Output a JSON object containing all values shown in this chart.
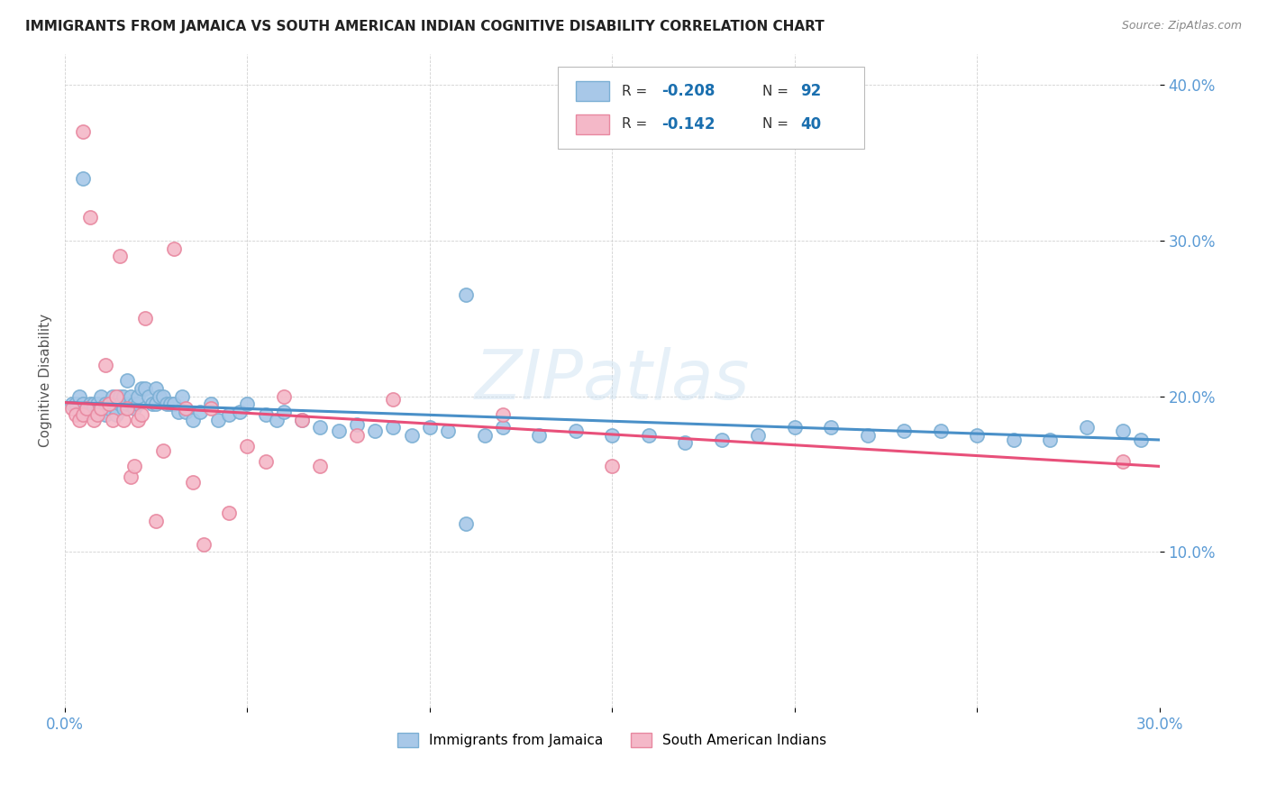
{
  "title": "IMMIGRANTS FROM JAMAICA VS SOUTH AMERICAN INDIAN COGNITIVE DISABILITY CORRELATION CHART",
  "source": "Source: ZipAtlas.com",
  "ylabel": "Cognitive Disability",
  "xlim": [
    0.0,
    0.3
  ],
  "ylim": [
    0.0,
    0.42
  ],
  "yticks": [
    0.1,
    0.2,
    0.3,
    0.4
  ],
  "ytick_labels": [
    "10.0%",
    "20.0%",
    "30.0%",
    "40.0%"
  ],
  "xticks": [
    0.0,
    0.05,
    0.1,
    0.15,
    0.2,
    0.25,
    0.3
  ],
  "color_blue": "#a8c8e8",
  "color_pink": "#f4b8c8",
  "edge_blue": "#7bafd4",
  "edge_pink": "#e888a0",
  "line_blue": "#4a90c8",
  "line_pink": "#e8507a",
  "axis_color": "#5b9bd5",
  "watermark": "ZIPatlas",
  "legend_r1": "-0.208",
  "legend_n1": "92",
  "legend_r2": "-0.142",
  "legend_n2": "40",
  "blue_scatter_x": [
    0.002,
    0.003,
    0.004,
    0.004,
    0.005,
    0.005,
    0.006,
    0.006,
    0.007,
    0.007,
    0.008,
    0.008,
    0.009,
    0.009,
    0.01,
    0.01,
    0.011,
    0.011,
    0.012,
    0.012,
    0.013,
    0.013,
    0.014,
    0.014,
    0.015,
    0.015,
    0.016,
    0.016,
    0.017,
    0.017,
    0.018,
    0.018,
    0.019,
    0.019,
    0.02,
    0.02,
    0.021,
    0.022,
    0.023,
    0.024,
    0.025,
    0.025,
    0.026,
    0.027,
    0.028,
    0.029,
    0.03,
    0.031,
    0.032,
    0.033,
    0.035,
    0.037,
    0.04,
    0.042,
    0.045,
    0.048,
    0.05,
    0.055,
    0.058,
    0.06,
    0.065,
    0.07,
    0.075,
    0.08,
    0.085,
    0.09,
    0.095,
    0.1,
    0.105,
    0.11,
    0.115,
    0.12,
    0.13,
    0.14,
    0.15,
    0.16,
    0.17,
    0.18,
    0.19,
    0.2,
    0.21,
    0.22,
    0.23,
    0.24,
    0.25,
    0.26,
    0.27,
    0.28,
    0.29,
    0.295,
    0.005,
    0.11
  ],
  "blue_scatter_y": [
    0.195,
    0.195,
    0.19,
    0.2,
    0.192,
    0.195,
    0.19,
    0.192,
    0.195,
    0.19,
    0.195,
    0.192,
    0.195,
    0.19,
    0.2,
    0.192,
    0.195,
    0.188,
    0.195,
    0.192,
    0.195,
    0.2,
    0.192,
    0.188,
    0.2,
    0.195,
    0.2,
    0.192,
    0.21,
    0.195,
    0.195,
    0.2,
    0.195,
    0.192,
    0.195,
    0.2,
    0.205,
    0.205,
    0.2,
    0.195,
    0.205,
    0.195,
    0.2,
    0.2,
    0.195,
    0.195,
    0.195,
    0.19,
    0.2,
    0.19,
    0.185,
    0.19,
    0.195,
    0.185,
    0.188,
    0.19,
    0.195,
    0.188,
    0.185,
    0.19,
    0.185,
    0.18,
    0.178,
    0.182,
    0.178,
    0.18,
    0.175,
    0.18,
    0.178,
    0.118,
    0.175,
    0.18,
    0.175,
    0.178,
    0.175,
    0.175,
    0.17,
    0.172,
    0.175,
    0.18,
    0.18,
    0.175,
    0.178,
    0.178,
    0.175,
    0.172,
    0.172,
    0.18,
    0.178,
    0.172,
    0.34,
    0.265
  ],
  "pink_scatter_x": [
    0.002,
    0.003,
    0.004,
    0.005,
    0.005,
    0.006,
    0.007,
    0.008,
    0.009,
    0.01,
    0.011,
    0.012,
    0.013,
    0.014,
    0.015,
    0.016,
    0.017,
    0.018,
    0.019,
    0.02,
    0.021,
    0.022,
    0.025,
    0.027,
    0.03,
    0.033,
    0.035,
    0.038,
    0.04,
    0.045,
    0.05,
    0.055,
    0.06,
    0.065,
    0.07,
    0.08,
    0.09,
    0.12,
    0.15,
    0.29
  ],
  "pink_scatter_y": [
    0.192,
    0.188,
    0.185,
    0.37,
    0.188,
    0.192,
    0.315,
    0.185,
    0.188,
    0.192,
    0.22,
    0.195,
    0.185,
    0.2,
    0.29,
    0.185,
    0.192,
    0.148,
    0.155,
    0.185,
    0.188,
    0.25,
    0.12,
    0.165,
    0.295,
    0.192,
    0.145,
    0.105,
    0.192,
    0.125,
    0.168,
    0.158,
    0.2,
    0.185,
    0.155,
    0.175,
    0.198,
    0.188,
    0.155,
    0.158
  ]
}
